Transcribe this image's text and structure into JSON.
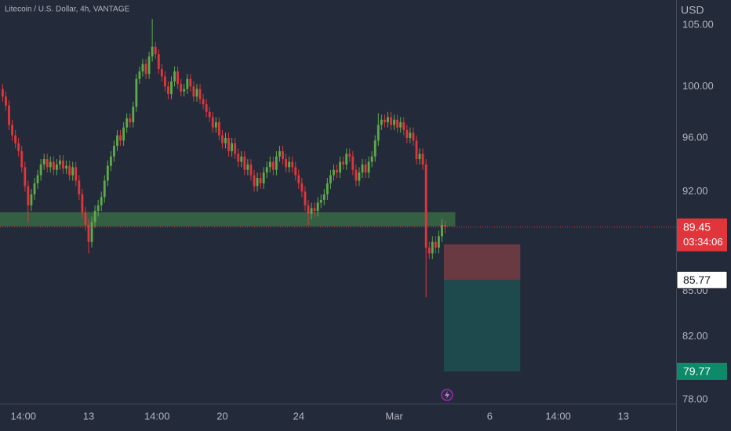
{
  "chart_data": {
    "type": "candlestick",
    "title": "Litecoin / U.S. Dollar, 4h, VANTAGE",
    "currency": "USD",
    "log": true,
    "up_color": "#5daa4a",
    "down_color": "#e0353b",
    "x": [
      8.5,
      8.667,
      8.833,
      9,
      9.167,
      9.333,
      9.5,
      9.667,
      9.833,
      10,
      10.167,
      10.333,
      10.5,
      10.667,
      10.833,
      11,
      11.167,
      11.333,
      11.5,
      11.667,
      11.833,
      12,
      12.167,
      12.333,
      12.5,
      12.667,
      12.833,
      13,
      13.167,
      13.333,
      13.5,
      13.667,
      13.833,
      14,
      14.167,
      14.333,
      14.5,
      14.667,
      14.833,
      15,
      15.167,
      15.333,
      15.5,
      15.667,
      15.833,
      16,
      16.167,
      16.333,
      16.5,
      16.667,
      16.833,
      17,
      17.167,
      17.333,
      17.5,
      17.667,
      17.833,
      18,
      18.167,
      18.333,
      18.5,
      18.667,
      18.833,
      19,
      19.167,
      19.333,
      19.5,
      19.667,
      19.833,
      20,
      20.167,
      20.333,
      20.5,
      20.667,
      20.833,
      21,
      21.167,
      21.333,
      21.5,
      21.667,
      21.833,
      22,
      22.167,
      22.333,
      22.5,
      22.667,
      22.833,
      23,
      23.167,
      23.333,
      23.5,
      23.667,
      23.833,
      24,
      24.167,
      24.333,
      24.5,
      24.667,
      24.833,
      25,
      25.167,
      25.333,
      25.5,
      25.667,
      25.833,
      26,
      26.167,
      26.333,
      26.5,
      26.667,
      26.833,
      27,
      27.167,
      27.333,
      27.5,
      27.667,
      27.833,
      28,
      28.167,
      28.333,
      28.5,
      28.667,
      28.833,
      29,
      29.167,
      29.333,
      29.5,
      29.667,
      29.833,
      30,
      30.167,
      30.333,
      30.5,
      30.667,
      30.833,
      31,
      31.167,
      31.333,
      31.5,
      31.667
    ],
    "open": [
      99.8,
      99.2,
      98.5,
      97.0,
      96.2,
      95.6,
      95.0,
      93.8,
      92.4,
      91.0,
      91.8,
      92.6,
      93.2,
      94.0,
      94.4,
      93.8,
      94.2,
      93.6,
      94.0,
      94.3,
      93.7,
      93.9,
      93.2,
      93.8,
      92.8,
      91.8,
      90.5,
      89.6,
      88.4,
      89.8,
      90.6,
      91.0,
      91.6,
      92.8,
      93.9,
      94.6,
      95.4,
      96.2,
      95.8,
      96.8,
      97.5,
      97.2,
      98.4,
      100.6,
      101.2,
      101.8,
      101.0,
      102.4,
      103.2,
      102.6,
      101.4,
      100.8,
      100.0,
      99.4,
      100.4,
      101.2,
      100.2,
      99.6,
      99.8,
      100.6,
      100.0,
      99.2,
      99.8,
      99.0,
      98.6,
      98.0,
      97.6,
      96.8,
      97.2,
      96.2,
      95.6,
      96.0,
      95.0,
      95.6,
      94.8,
      94.2,
      94.6,
      93.6,
      94.0,
      93.2,
      92.4,
      93.0,
      92.6,
      93.4,
      93.8,
      94.2,
      93.6,
      94.6,
      95.0,
      94.4,
      93.8,
      94.2,
      93.8,
      93.2,
      92.6,
      92.0,
      91.0,
      90.4,
      90.8,
      90.6,
      91.2,
      91.4,
      91.8,
      92.6,
      93.2,
      93.6,
      93.4,
      94.2,
      94.0,
      94.8,
      94.6,
      93.6,
      92.8,
      93.4,
      94.0,
      93.4,
      94.2,
      94.6,
      95.8,
      97.0,
      97.4,
      97.2,
      97.6,
      97.0,
      97.4,
      96.8,
      97.2,
      96.6,
      96.0,
      96.4,
      95.8,
      94.4,
      94.8,
      94.0,
      88.0,
      87.6,
      88.4,
      88.0,
      88.8,
      89.6
    ],
    "high": [
      100.2,
      99.6,
      98.9,
      97.4,
      96.6,
      96.0,
      95.4,
      94.2,
      92.8,
      92.2,
      93.0,
      93.6,
      94.4,
      94.8,
      94.8,
      94.6,
      94.6,
      94.4,
      94.7,
      94.7,
      94.3,
      94.3,
      94.2,
      94.2,
      93.2,
      92.2,
      90.9,
      90.0,
      90.2,
      91.0,
      91.4,
      92.0,
      93.2,
      94.3,
      95.0,
      95.8,
      96.6,
      96.6,
      97.2,
      97.9,
      97.9,
      98.8,
      101.0,
      101.6,
      102.2,
      102.2,
      102.8,
      105.5,
      103.6,
      103.0,
      101.8,
      101.2,
      100.4,
      100.8,
      101.6,
      101.6,
      100.6,
      100.2,
      101.0,
      101.0,
      100.4,
      100.2,
      100.2,
      99.4,
      99.0,
      98.4,
      98.0,
      97.6,
      97.6,
      96.6,
      96.4,
      96.4,
      96.0,
      96.0,
      95.2,
      95.0,
      95.0,
      94.4,
      94.4,
      93.6,
      93.4,
      93.4,
      93.8,
      94.2,
      94.6,
      94.6,
      95.0,
      95.4,
      95.4,
      94.8,
      94.6,
      94.6,
      94.2,
      93.6,
      93.0,
      92.4,
      91.4,
      91.2,
      91.2,
      91.6,
      91.8,
      92.2,
      93.0,
      93.6,
      94.0,
      94.0,
      94.6,
      94.6,
      95.2,
      95.2,
      95.0,
      94.0,
      93.8,
      94.4,
      94.4,
      94.6,
      95.0,
      96.2,
      97.9,
      97.8,
      97.8,
      98.0,
      98.0,
      97.8,
      97.8,
      97.6,
      97.6,
      97.0,
      96.8,
      96.8,
      96.2,
      95.2,
      95.2,
      94.4,
      88.4,
      88.8,
      88.8,
      89.2,
      90.0,
      89.9
    ],
    "low": [
      98.8,
      98.1,
      96.6,
      95.8,
      95.2,
      94.6,
      93.4,
      92.0,
      89.8,
      90.6,
      91.4,
      92.2,
      92.8,
      93.6,
      93.4,
      93.4,
      93.2,
      93.2,
      93.6,
      93.3,
      93.3,
      92.8,
      92.8,
      92.4,
      91.4,
      90.1,
      89.2,
      87.6,
      88.0,
      89.4,
      90.2,
      90.6,
      91.2,
      92.4,
      93.5,
      94.2,
      95.0,
      95.4,
      95.4,
      96.4,
      96.8,
      96.8,
      98.0,
      100.2,
      100.8,
      100.6,
      100.6,
      102.0,
      102.2,
      101.0,
      100.4,
      99.6,
      99.0,
      99.0,
      100.0,
      99.8,
      99.2,
      99.2,
      99.4,
      99.6,
      98.8,
      98.8,
      98.6,
      98.2,
      97.6,
      97.2,
      96.4,
      96.4,
      95.8,
      95.2,
      95.2,
      94.6,
      94.6,
      94.4,
      93.8,
      93.8,
      93.2,
      93.2,
      92.8,
      92.0,
      92.0,
      92.2,
      92.2,
      93.0,
      93.4,
      93.2,
      93.2,
      94.2,
      94.0,
      93.4,
      93.4,
      93.4,
      92.8,
      92.2,
      91.6,
      90.6,
      89.6,
      90.0,
      90.2,
      90.2,
      90.8,
      91.0,
      91.4,
      92.2,
      92.8,
      93.0,
      93.0,
      93.6,
      93.6,
      94.2,
      93.2,
      92.4,
      92.4,
      93.0,
      93.0,
      93.0,
      93.8,
      94.2,
      95.4,
      96.6,
      96.8,
      96.8,
      96.6,
      96.6,
      96.4,
      96.4,
      96.2,
      95.6,
      95.6,
      95.4,
      94.0,
      94.0,
      93.6,
      84.6,
      87.2,
      87.2,
      87.6,
      87.6,
      88.4,
      89.0
    ],
    "close": [
      99.2,
      98.5,
      97.0,
      96.2,
      95.6,
      95.0,
      93.8,
      92.4,
      91.0,
      91.8,
      92.6,
      93.2,
      94.0,
      94.4,
      93.8,
      94.2,
      93.6,
      94.0,
      94.3,
      93.7,
      93.9,
      93.2,
      93.8,
      92.8,
      91.8,
      90.5,
      89.6,
      88.4,
      89.8,
      90.6,
      91.0,
      91.6,
      92.8,
      93.9,
      94.6,
      95.4,
      96.2,
      95.8,
      96.8,
      97.5,
      97.2,
      98.4,
      100.6,
      101.2,
      101.8,
      101.0,
      102.4,
      103.2,
      102.6,
      101.4,
      100.8,
      100.0,
      99.4,
      100.4,
      101.2,
      100.2,
      99.6,
      99.8,
      100.6,
      100.0,
      99.2,
      99.8,
      99.0,
      98.6,
      98.0,
      97.6,
      96.8,
      97.2,
      96.2,
      95.6,
      96.0,
      95.0,
      95.6,
      94.8,
      94.2,
      94.6,
      93.6,
      94.0,
      93.2,
      92.4,
      93.0,
      92.6,
      93.4,
      93.8,
      94.2,
      93.6,
      94.6,
      95.0,
      94.4,
      93.8,
      94.2,
      93.8,
      93.2,
      92.6,
      92.0,
      91.0,
      90.4,
      90.8,
      90.6,
      91.2,
      91.4,
      91.8,
      92.6,
      93.2,
      93.6,
      93.4,
      94.2,
      94.0,
      94.8,
      94.6,
      93.6,
      92.8,
      93.4,
      94.0,
      93.4,
      94.2,
      94.6,
      95.8,
      97.0,
      97.4,
      97.2,
      97.6,
      97.0,
      97.4,
      96.8,
      97.2,
      96.6,
      96.0,
      96.4,
      95.8,
      94.4,
      94.8,
      94.0,
      88.0,
      87.6,
      88.4,
      88.0,
      88.8,
      89.6,
      89.45
    ],
    "xlim": [
      8.36,
      43.76
    ],
    "xticks": [
      {
        "value": 9.583,
        "label": "14:00"
      },
      13,
      {
        "value": 16.583,
        "label": "14:00"
      },
      20,
      24,
      {
        "value": 29,
        "label": "Mar"
      },
      {
        "value": 34,
        "label": "6"
      },
      {
        "value": 37.583,
        "label": "14:00"
      },
      {
        "value": 41,
        "label": "13"
      }
    ],
    "ylim": [
      77.76,
      107.1
    ],
    "yticks": [
      {
        "value": 78,
        "label": "78.00"
      },
      {
        "value": 82,
        "label": "82.00"
      },
      {
        "value": 85,
        "label": "85.00"
      },
      {
        "value": 92,
        "label": "92.00"
      },
      {
        "value": 96,
        "label": "96.00"
      },
      {
        "value": 100,
        "label": "100.00"
      },
      {
        "value": 105,
        "label": "105.00"
      }
    ],
    "support_zone": {
      "x": [
        8.36,
        32.2
      ],
      "low": 89.5,
      "high": 90.51,
      "color": "rgba(76,160,80,0.45)"
    },
    "position": {
      "x": [
        31.6,
        35.6
      ],
      "entry": 85.77,
      "stop": 88.23,
      "target": 79.77,
      "stop_color": "#6a3a43",
      "target_color": "#1f4a4d"
    },
    "last_price": 89.45,
    "countdown": "03:34:06"
  }
}
